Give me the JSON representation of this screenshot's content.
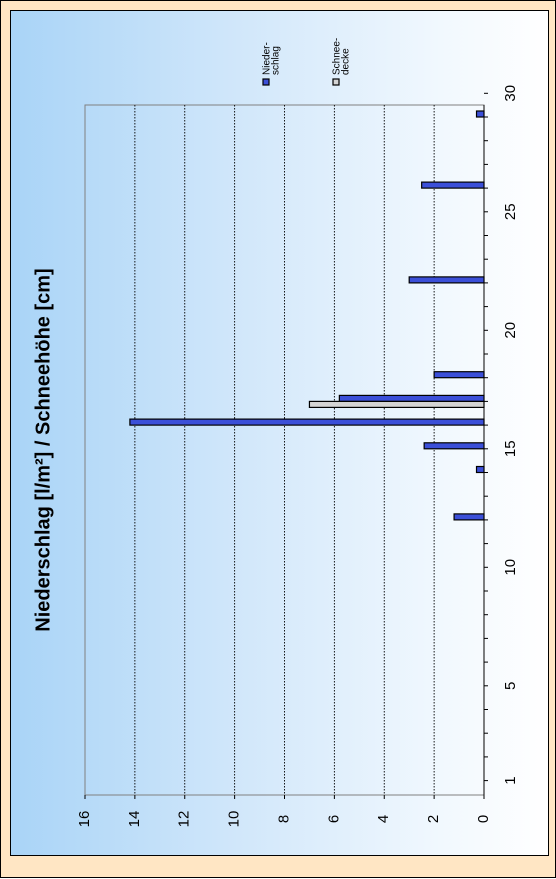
{
  "chart_data": {
    "type": "bar",
    "orientation": "rotated-90",
    "title": "Niederschlag [l/m²] / Schneehöhe [cm]",
    "x_ticks": [
      "1",
      "5",
      "10",
      "15",
      "20",
      "25",
      "30"
    ],
    "y_ticks": [
      "0",
      "2",
      "4",
      "6",
      "8",
      "10",
      "12",
      "14",
      "16"
    ],
    "ylim": [
      0,
      16
    ],
    "xlim": [
      1,
      30
    ],
    "grid": true,
    "legend_position": "top-right",
    "series": [
      {
        "name": "Nieder-\nschlag",
        "color": "#3b4fd8",
        "points": [
          {
            "x": 12,
            "y": 1.2
          },
          {
            "x": 14,
            "y": 0.3
          },
          {
            "x": 15,
            "y": 2.4
          },
          {
            "x": 16,
            "y": 14.2
          },
          {
            "x": 17,
            "y": 5.8
          },
          {
            "x": 18,
            "y": 2.0
          },
          {
            "x": 22,
            "y": 3.0
          },
          {
            "x": 26,
            "y": 2.5
          },
          {
            "x": 29,
            "y": 0.3
          }
        ]
      },
      {
        "name": "Schnee-\ndecke",
        "color": "#d4d4d4",
        "points": [
          {
            "x": 17,
            "y": 7.0
          }
        ]
      }
    ]
  }
}
